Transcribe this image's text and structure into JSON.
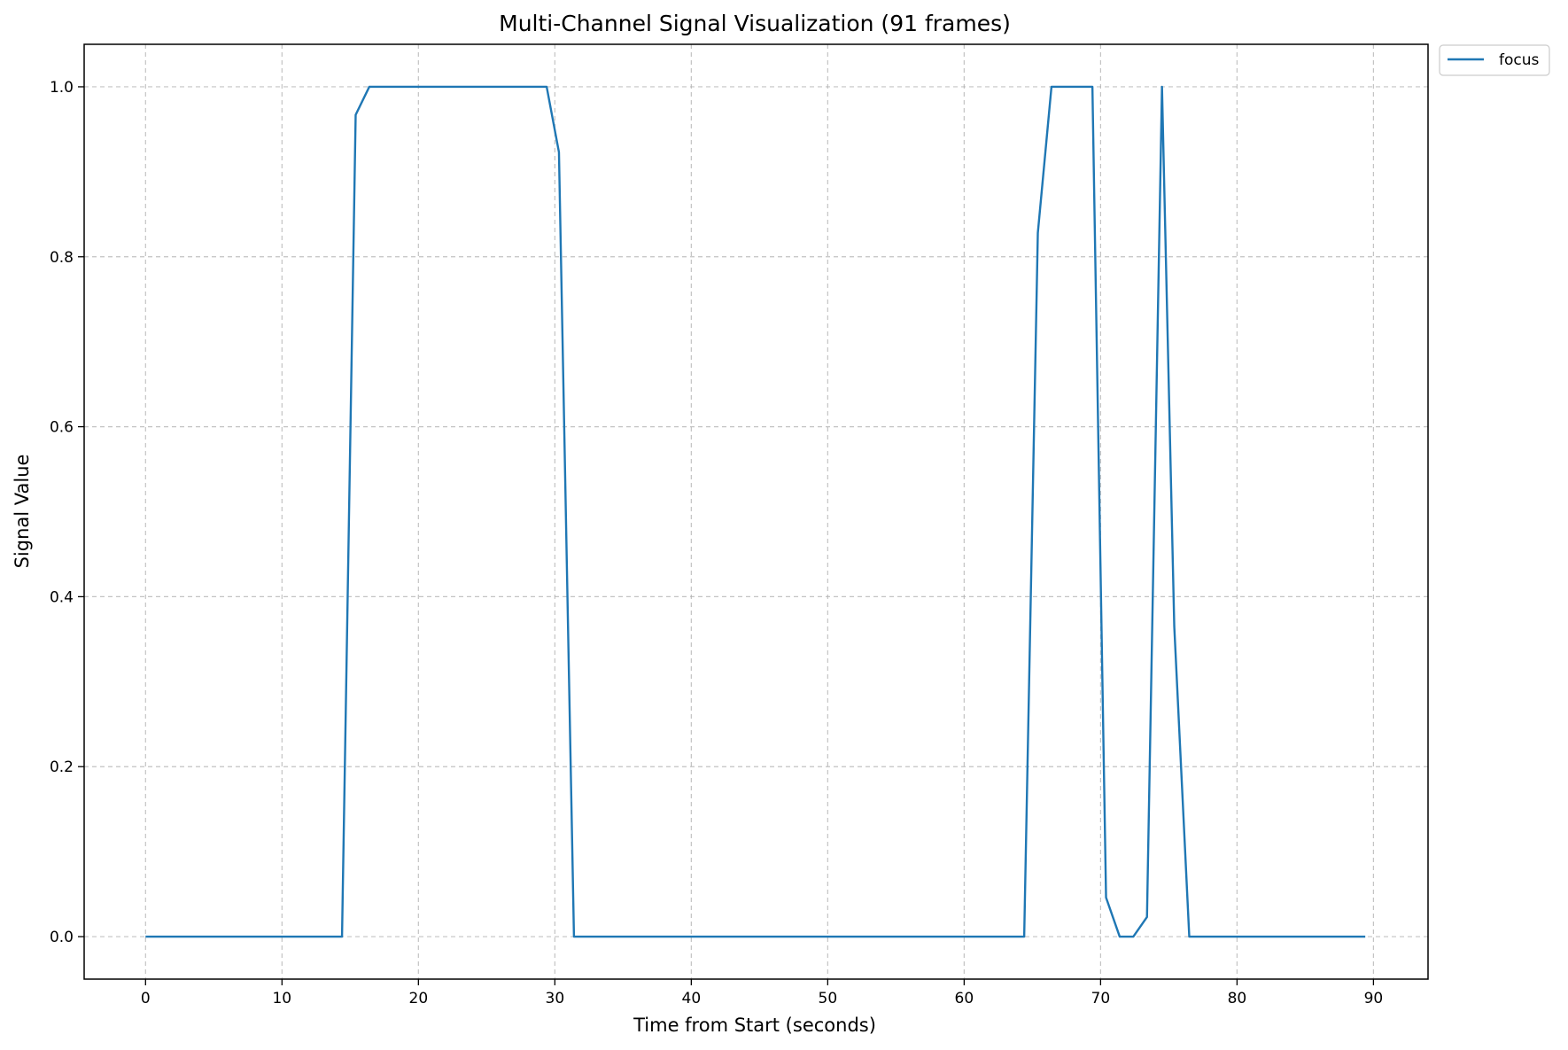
{
  "chart_data": {
    "type": "line",
    "title": "Multi-Channel Signal Visualization (91 frames)",
    "xlabel": "Time from Start (seconds)",
    "ylabel": "Signal Value",
    "xlim": [
      -4.5,
      94
    ],
    "ylim": [
      -0.05,
      1.05
    ],
    "xticks": [
      0,
      10,
      20,
      30,
      40,
      50,
      60,
      70,
      80,
      90
    ],
    "xtick_labels": [
      "0",
      "10",
      "20",
      "30",
      "40",
      "50",
      "60",
      "70",
      "80",
      "90"
    ],
    "yticks": [
      0.0,
      0.2,
      0.4,
      0.6,
      0.8,
      1.0
    ],
    "ytick_labels": [
      "0.0",
      "0.2",
      "0.4",
      "0.6",
      "0.8",
      "1.0"
    ],
    "grid": true,
    "legend_position": "outside-top-right",
    "series": [
      {
        "name": "focus",
        "color": "#1f77b4",
        "x": [
          0,
          14.4,
          15.4,
          16.4,
          29.4,
          30.3,
          31.4,
          64.4,
          65.4,
          66.4,
          69.4,
          70.4,
          71.4,
          72.4,
          73.4,
          74.5,
          75.4,
          76.5,
          89.4
        ],
        "y": [
          0,
          0,
          0.967,
          1.0,
          1.0,
          0.923,
          0,
          0,
          0.828,
          1.0,
          1.0,
          0.046,
          0,
          0,
          0.023,
          1.0,
          0.365,
          0,
          0
        ]
      }
    ]
  }
}
